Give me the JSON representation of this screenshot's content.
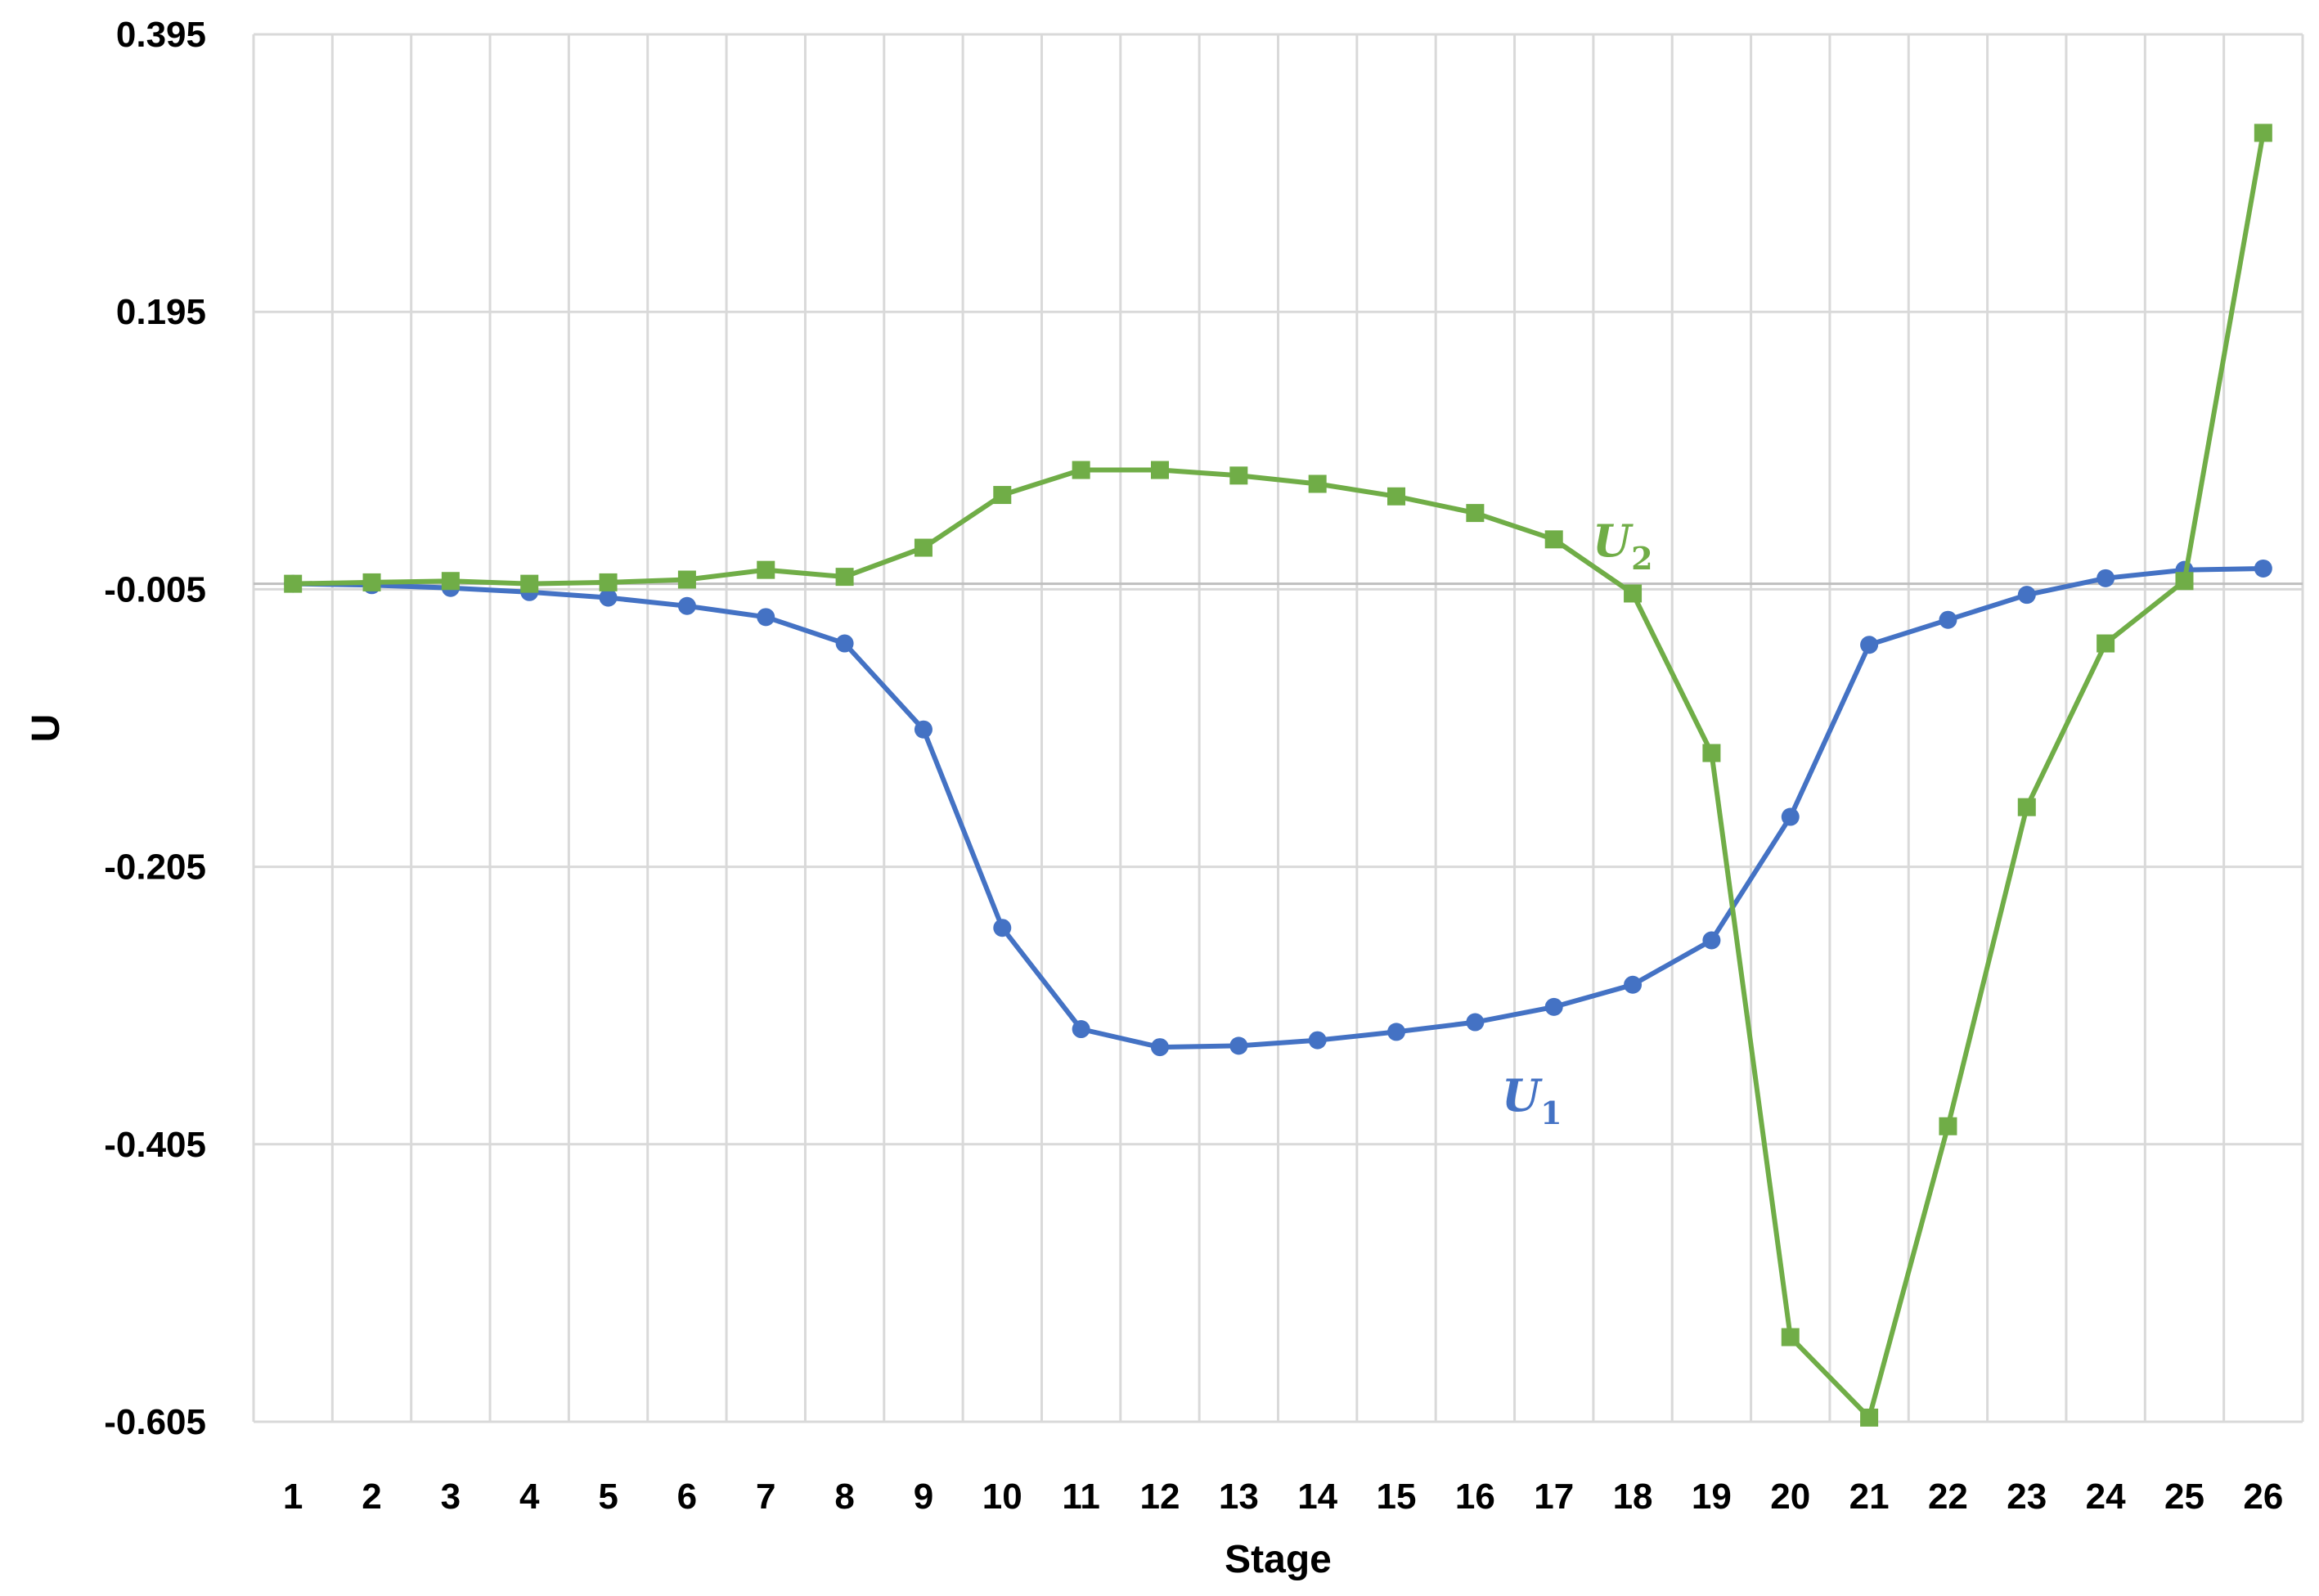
{
  "chart_data": {
    "type": "line",
    "title": "",
    "xlabel": "Stage",
    "ylabel": "U",
    "categories": [
      "1",
      "2",
      "3",
      "4",
      "5",
      "6",
      "7",
      "8",
      "9",
      "10",
      "11",
      "12",
      "13",
      "14",
      "15",
      "16",
      "17",
      "18",
      "19",
      "20",
      "21",
      "22",
      "23",
      "24",
      "25",
      "26"
    ],
    "yticks": [
      "0.395",
      "0.195",
      "-0.005",
      "-0.205",
      "-0.405",
      "-0.605"
    ],
    "ylim": [
      -0.605,
      0.395
    ],
    "grid": true,
    "series": [
      {
        "name": "U1",
        "label_main": "U",
        "label_sub": "1",
        "color": "#4472C4",
        "marker": "circle",
        "values": [
          -0.001,
          -0.002,
          -0.004,
          -0.007,
          -0.011,
          -0.017,
          -0.025,
          -0.044,
          -0.106,
          -0.249,
          -0.322,
          -0.335,
          -0.334,
          -0.33,
          -0.324,
          -0.317,
          -0.306,
          -0.29,
          -0.258,
          -0.169,
          -0.045,
          -0.027,
          -0.009,
          0.003,
          0.009,
          0.01
        ]
      },
      {
        "name": "U2",
        "label_main": "U",
        "label_sub": "2",
        "color": "#70AD47",
        "marker": "square",
        "values": [
          -0.001,
          0.0,
          0.001,
          -0.001,
          0.0,
          0.002,
          0.009,
          0.004,
          0.025,
          0.063,
          0.081,
          0.081,
          0.077,
          0.071,
          0.062,
          0.05,
          0.031,
          -0.008,
          -0.123,
          -0.544,
          -0.602,
          -0.392,
          -0.162,
          -0.044,
          0.001,
          0.324
        ]
      }
    ],
    "baseline_value": -0.001,
    "colors": {
      "gridline": "#D9D9D9",
      "axis": "#BFBFBF"
    }
  }
}
